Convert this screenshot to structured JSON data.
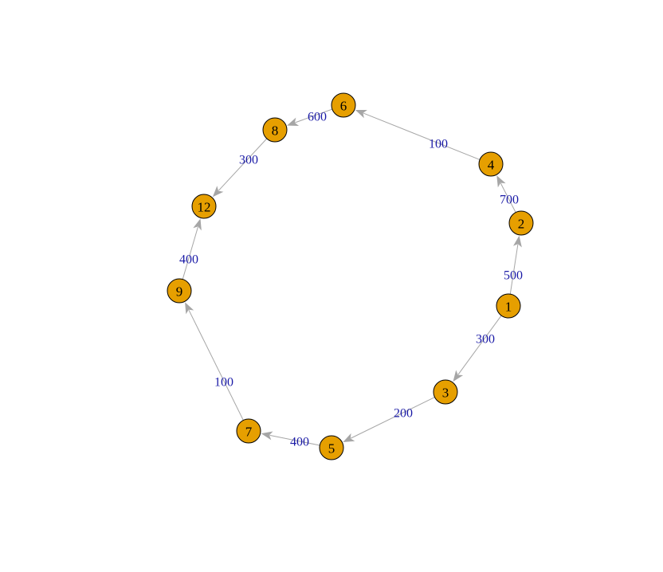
{
  "colors": {
    "node_fill": "#e69f00",
    "node_stroke": "#000000",
    "edge": "#a6a6a6",
    "edge_label": "#1a1aa6",
    "background": "#ffffff"
  },
  "nodes": [
    {
      "id": "1",
      "label": "1"
    },
    {
      "id": "2",
      "label": "2"
    },
    {
      "id": "3",
      "label": "3"
    },
    {
      "id": "4",
      "label": "4"
    },
    {
      "id": "5",
      "label": "5"
    },
    {
      "id": "6",
      "label": "6"
    },
    {
      "id": "7",
      "label": "7"
    },
    {
      "id": "8",
      "label": "8"
    },
    {
      "id": "9",
      "label": "9"
    },
    {
      "id": "12",
      "label": "12"
    }
  ],
  "edges": [
    {
      "from": "1",
      "to": "2",
      "weight": "500"
    },
    {
      "from": "2",
      "to": "4",
      "weight": "700"
    },
    {
      "from": "4",
      "to": "6",
      "weight": "100"
    },
    {
      "from": "6",
      "to": "8",
      "weight": "600"
    },
    {
      "from": "8",
      "to": "12",
      "weight": "300"
    },
    {
      "from": "9",
      "to": "12",
      "weight": "400"
    },
    {
      "from": "7",
      "to": "9",
      "weight": "100"
    },
    {
      "from": "5",
      "to": "7",
      "weight": "400"
    },
    {
      "from": "3",
      "to": "5",
      "weight": "200"
    },
    {
      "from": "1",
      "to": "3",
      "weight": "300"
    }
  ]
}
